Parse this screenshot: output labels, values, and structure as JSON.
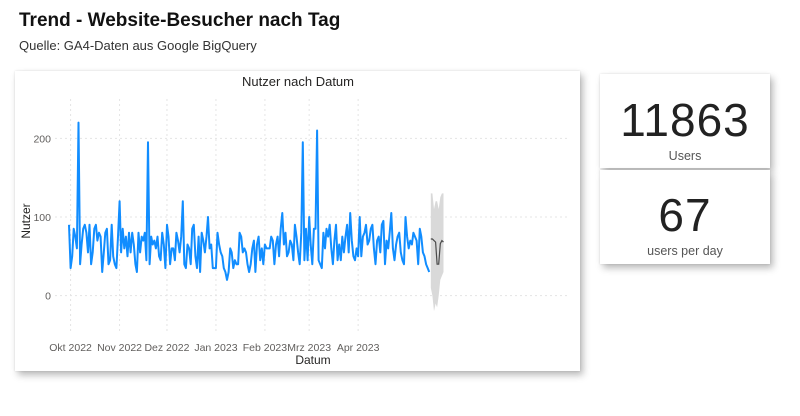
{
  "header": {
    "title": "Trend - Website-Besucher nach Tag",
    "subtitle": "Quelle: GA4-Daten aus Google BigQuery"
  },
  "kpis": {
    "users": {
      "value": "11863",
      "label": "Users"
    },
    "per_day": {
      "value": "67",
      "label": "users per day"
    }
  },
  "colors": {
    "series": "#118DFF",
    "forecast_line": "#4a4a4a",
    "forecast_band": "#d9d9d9",
    "grid": "#e4e4e4"
  },
  "chart_data": {
    "type": "line",
    "title": "Nutzer nach Datum",
    "xlabel": "Datum",
    "ylabel": "Nutzer",
    "start_date": "2022-09-30",
    "x_ticks": [
      {
        "label": "Okt 2022",
        "date": "2022-10-01"
      },
      {
        "label": "Nov 2022",
        "date": "2022-11-01"
      },
      {
        "label": "Dez 2022",
        "date": "2022-12-01"
      },
      {
        "label": "Jan 2023",
        "date": "2023-01-01"
      },
      {
        "label": "Feb 2023",
        "date": "2023-02-01"
      },
      {
        "label": "Mrz 2023",
        "date": "2023-03-01"
      },
      {
        "label": "Apr 2023",
        "date": "2023-04-01"
      }
    ],
    "y_ticks": [
      0,
      100,
      200
    ],
    "ylim": [
      -45,
      250
    ],
    "grid": true,
    "series": [
      {
        "values": [
          90,
          35,
          50,
          85,
          75,
          60,
          220,
          40,
          65,
          85,
          90,
          80,
          55,
          90,
          40,
          55,
          85,
          90,
          70,
          80,
          75,
          30,
          55,
          80,
          85,
          40,
          45,
          90,
          50,
          40,
          35,
          75,
          120,
          55,
          85,
          60,
          75,
          50,
          80,
          55,
          80,
          65,
          40,
          30,
          80,
          55,
          75,
          70,
          80,
          45,
          195,
          40,
          75,
          65,
          70,
          60,
          75,
          50,
          45,
          80,
          65,
          35,
          90,
          75,
          40,
          60,
          60,
          45,
          80,
          70,
          55,
          75,
          120,
          40,
          35,
          65,
          60,
          40,
          85,
          90,
          50,
          35,
          75,
          30,
          80,
          70,
          55,
          75,
          100,
          60,
          65,
          35,
          35,
          35,
          80,
          65,
          55,
          50,
          35,
          30,
          20,
          30,
          60,
          55,
          35,
          45,
          40,
          40,
          80,
          75,
          55,
          60,
          55,
          40,
          30,
          40,
          60,
          70,
          30,
          65,
          75,
          45,
          60,
          40,
          65,
          60,
          60,
          60,
          75,
          70,
          40,
          65,
          75,
          50,
          85,
          105,
          65,
          80,
          50,
          55,
          70,
          65,
          45,
          90,
          75,
          55,
          40,
          80,
          195,
          45,
          85,
          45,
          100,
          65,
          40,
          85,
          85,
          210,
          45,
          40,
          35,
          80,
          60,
          85,
          75,
          90,
          60,
          40,
          70,
          90,
          45,
          65,
          45,
          75,
          55,
          75,
          90,
          55,
          105,
          70,
          50,
          45,
          60,
          50,
          100,
          50,
          75,
          80,
          90,
          65,
          70,
          85,
          90,
          60,
          40,
          70,
          75,
          55,
          90,
          95,
          40,
          70,
          60,
          80,
          105,
          60,
          45,
          65,
          75,
          80,
          55,
          45,
          40,
          100,
          75,
          60,
          70,
          65,
          80,
          75,
          70,
          40,
          85,
          75,
          55,
          50,
          40,
          35,
          30
        ]
      }
    ],
    "forecast": {
      "values": [
        72,
        72,
        70,
        68,
        40,
        40,
        66,
        70,
        68
      ],
      "lower": [
        10,
        0,
        -20,
        -10,
        -15,
        0,
        20,
        25,
        30
      ],
      "upper": [
        130,
        130,
        110,
        120,
        120,
        110,
        125,
        130,
        130
      ]
    }
  }
}
